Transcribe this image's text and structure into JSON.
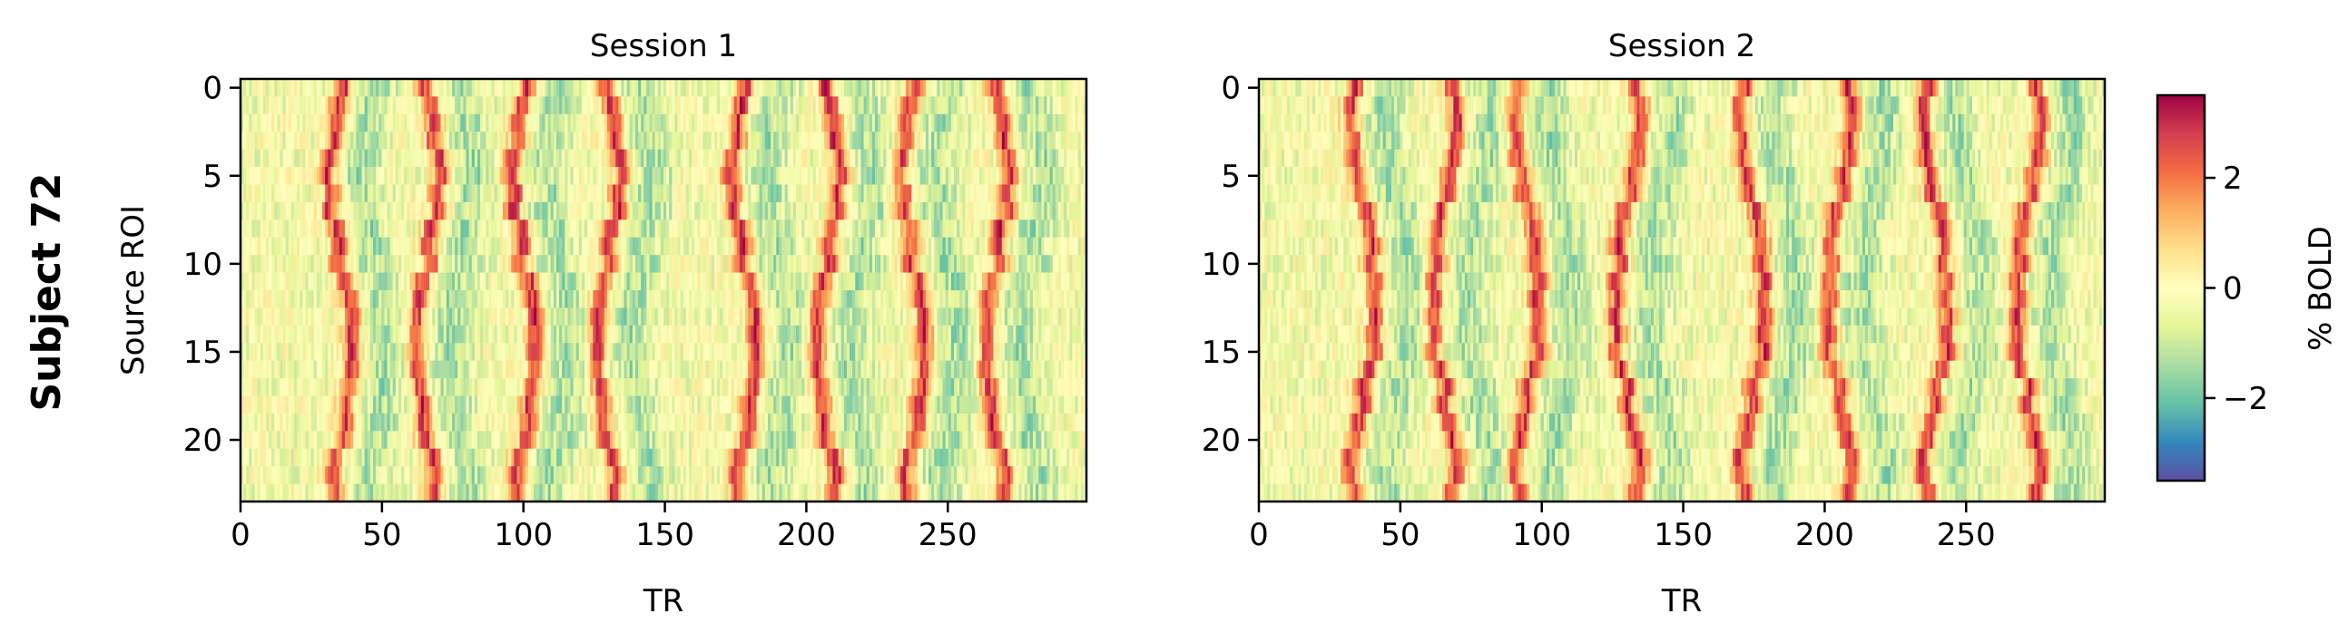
{
  "figure": {
    "row_label": "Subject 72"
  },
  "colorbar": {
    "label": "% BOLD",
    "ticks": [
      2,
      0,
      -2
    ],
    "tick_labels": [
      "2",
      "0",
      "−2"
    ],
    "range": [
      -3.5,
      3.5
    ],
    "colormap": "Spectral_r"
  },
  "chart_data": [
    {
      "type": "heatmap",
      "title": "Session 1",
      "xlabel": "TR",
      "ylabel": "Source ROI",
      "xlim": [
        0,
        299
      ],
      "ylim": [
        23.5,
        -0.5
      ],
      "xticks": [
        0,
        50,
        100,
        150,
        200,
        250
      ],
      "yticks": [
        0,
        5,
        10,
        15,
        20
      ],
      "n_rows": 24,
      "n_cols": 300,
      "value_range": [
        -3.5,
        3.5
      ],
      "peak_TRs": [
        35,
        66,
        100,
        130,
        178,
        208,
        238,
        268
      ],
      "seed": 11
    },
    {
      "type": "heatmap",
      "title": "Session 2",
      "xlabel": "TR",
      "ylabel": "",
      "xlim": [
        0,
        299
      ],
      "ylim": [
        23.5,
        -0.5
      ],
      "xticks": [
        0,
        50,
        100,
        150,
        200,
        250
      ],
      "yticks": [
        0,
        5,
        10,
        15,
        20
      ],
      "n_rows": 24,
      "n_cols": 300,
      "value_range": [
        -3.5,
        3.5
      ],
      "peak_TRs": [
        37,
        65,
        95,
        130,
        175,
        205,
        240,
        272
      ],
      "seed": 29
    }
  ]
}
